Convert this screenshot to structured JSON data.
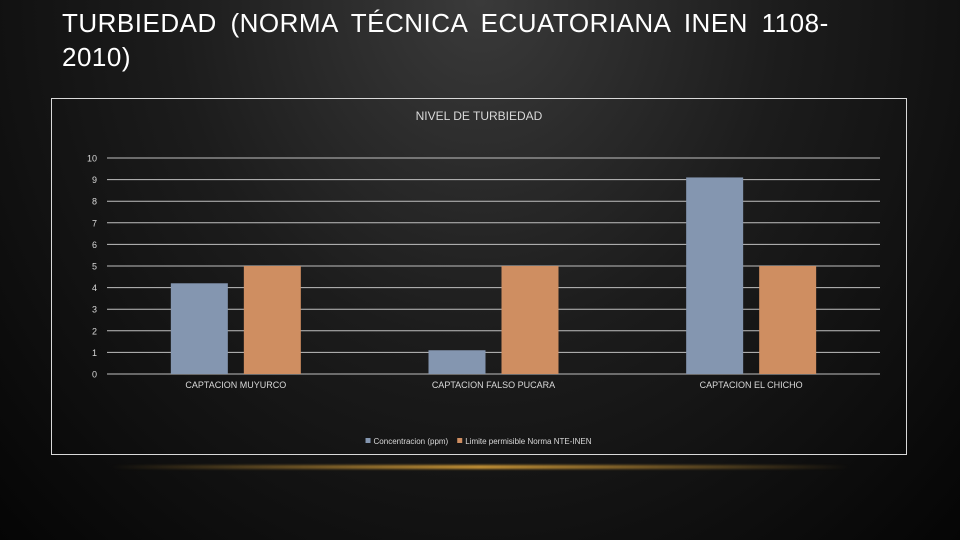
{
  "slide": {
    "title": "TURBIEDAD (NORMA TÉCNICA ECUATORIANA INEN 1108-2010)"
  },
  "chart_data": {
    "type": "bar",
    "title": "NIVEL DE TURBIEDAD",
    "categories": [
      "CAPTACION MUYURCO",
      "CAPTACION FALSO PUCARA",
      "CAPTACION EL CHICHO"
    ],
    "series": [
      {
        "name": "Concentracion (ppm)",
        "values": [
          4.2,
          1.1,
          9.1
        ],
        "color": "#8496b0"
      },
      {
        "name": "Limite permisible Norma NTE-INEN",
        "values": [
          5,
          5,
          5
        ],
        "color": "#cf8e61"
      }
    ],
    "ylim": [
      0,
      10
    ],
    "yticks": [
      "0",
      "1",
      "2",
      "3",
      "4",
      "5",
      "6",
      "7",
      "8",
      "9",
      "10"
    ],
    "grid": true,
    "legend": "bottom",
    "colors": {
      "grid": "#bfbfbf",
      "text": "#d9d9d9",
      "frame": "#d9d9d9"
    }
  }
}
